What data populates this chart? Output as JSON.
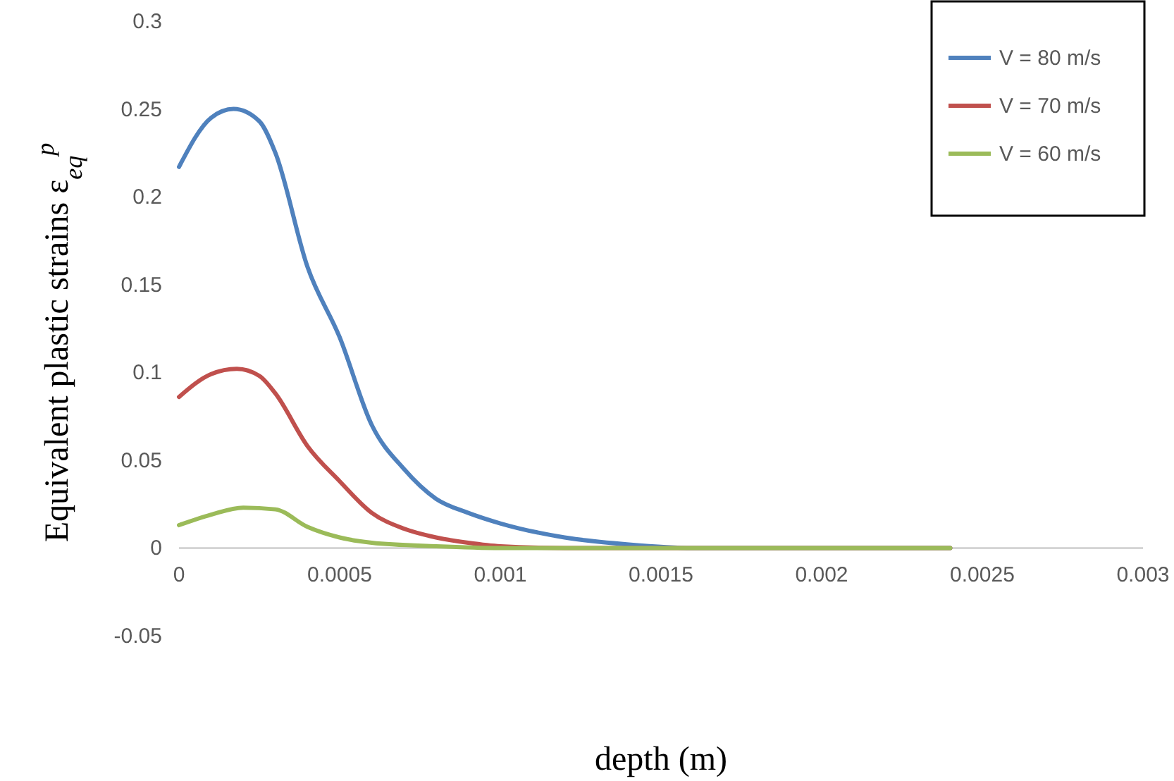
{
  "chart_data": {
    "type": "line",
    "xlabel": "depth (m)",
    "ylabel": "Equivalent plastic strains ε$_{eq}$$^{p}$",
    "xlim": [
      0,
      0.003
    ],
    "xticks": [
      0,
      0.0005,
      0.001,
      0.0015,
      0.002,
      0.0025,
      0.003
    ],
    "ylim": [
      -0.05,
      0.3
    ],
    "yticks": [
      -0.05,
      0,
      0.05,
      0.1,
      0.15,
      0.2,
      0.25,
      0.3
    ],
    "grid": false,
    "legend": "top right",
    "marker": "none",
    "line_style": "solid",
    "series": [
      {
        "name": "V = 80 m/s",
        "color": "#4f81bd",
        "x": [
          0,
          0.0001,
          0.00017,
          0.00025,
          0.0003,
          0.0004,
          0.0005,
          0.0006,
          0.0007,
          0.0008,
          0.0009,
          0.001,
          0.0012,
          0.0014,
          0.0016,
          0.0024
        ],
        "values": [
          0.217,
          0.245,
          0.25,
          0.243,
          0.225,
          0.16,
          0.12,
          0.07,
          0.045,
          0.028,
          0.02,
          0.014,
          0.006,
          0.002,
          0,
          0
        ]
      },
      {
        "name": "V = 70 m/s",
        "color": "#c0504d",
        "x": [
          0,
          0.0001,
          0.00018,
          0.00025,
          0.0003,
          0.0004,
          0.0005,
          0.0006,
          0.0007,
          0.0008,
          0.0009,
          0.001,
          0.0012,
          0.0024
        ],
        "values": [
          0.086,
          0.099,
          0.102,
          0.098,
          0.088,
          0.058,
          0.038,
          0.02,
          0.011,
          0.006,
          0.003,
          0.001,
          0,
          0
        ]
      },
      {
        "name": "V = 60 m/s",
        "color": "#9bbb59",
        "x": [
          0,
          0.0001,
          0.0002,
          0.0003,
          0.0004,
          0.0005,
          0.0006,
          0.0008,
          0.001,
          0.0024
        ],
        "values": [
          0.013,
          0.019,
          0.023,
          0.022,
          0.012,
          0.006,
          0.003,
          0.001,
          0,
          0
        ]
      }
    ]
  }
}
